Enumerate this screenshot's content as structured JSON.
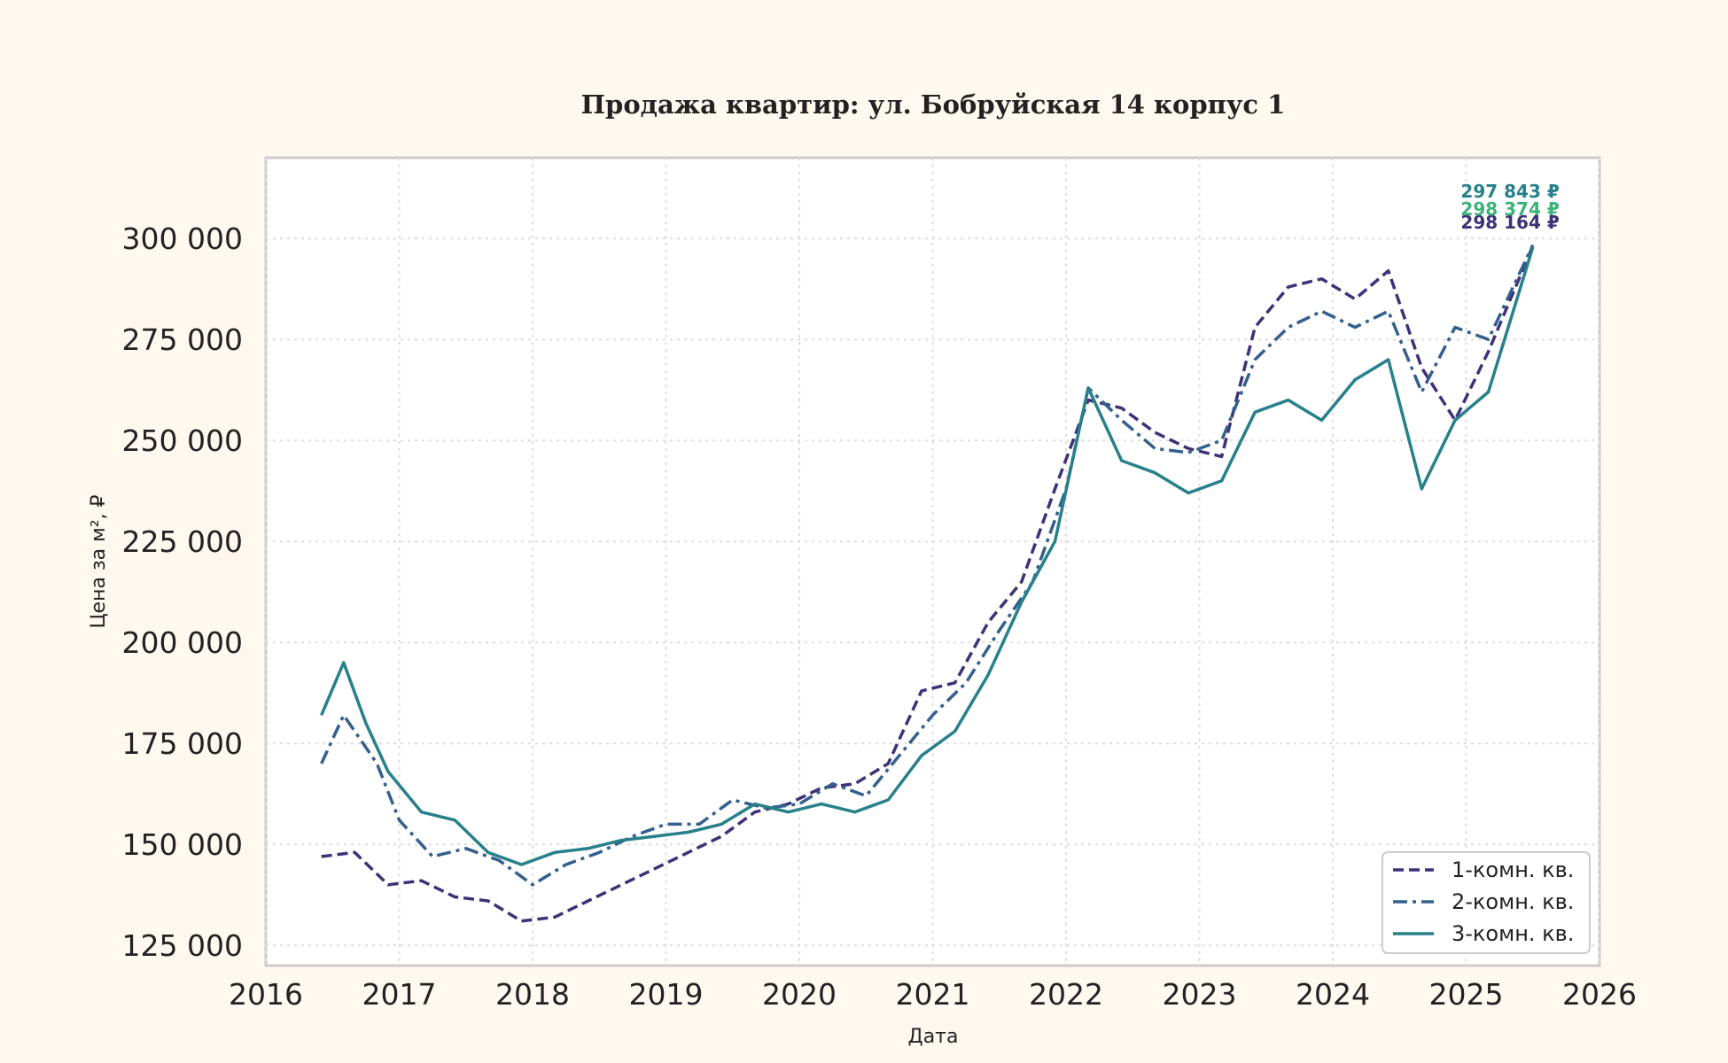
{
  "chart_data": {
    "type": "line",
    "title": "Продажа квартир: ул. Бобруйская 14 корпус 1",
    "xlabel": "Дата",
    "ylabel": "Цена за м², ₽",
    "x_ticks": [
      "2016",
      "2017",
      "2018",
      "2019",
      "2020",
      "2021",
      "2022",
      "2023",
      "2024",
      "2025",
      "2026"
    ],
    "y_ticks": [
      "125 000",
      "150 000",
      "175 000",
      "200 000",
      "225 000",
      "250 000",
      "275 000",
      "300 000"
    ],
    "xlim": [
      "2016-01-01",
      "2026-01-01"
    ],
    "ylim": [
      120000,
      320000
    ],
    "grid": true,
    "legend_position": "bottom-right",
    "series": [
      {
        "name": "1-комн. кв.",
        "color": "#3f3177",
        "dash": "dashed",
        "end_label": "298 164 ₽",
        "end_label_color": "#3f3177",
        "points": [
          [
            "2016-06",
            147000
          ],
          [
            "2016-09",
            148000
          ],
          [
            "2016-12",
            140000
          ],
          [
            "2017-03",
            141000
          ],
          [
            "2017-06",
            137000
          ],
          [
            "2017-09",
            136000
          ],
          [
            "2017-12",
            131000
          ],
          [
            "2018-03",
            132000
          ],
          [
            "2018-06",
            136000
          ],
          [
            "2018-09",
            140000
          ],
          [
            "2018-12",
            144000
          ],
          [
            "2019-03",
            148000
          ],
          [
            "2019-06",
            152000
          ],
          [
            "2019-09",
            158000
          ],
          [
            "2019-12",
            160000
          ],
          [
            "2020-03",
            164000
          ],
          [
            "2020-06",
            165000
          ],
          [
            "2020-09",
            170000
          ],
          [
            "2020-12",
            188000
          ],
          [
            "2021-03",
            190000
          ],
          [
            "2021-06",
            205000
          ],
          [
            "2021-09",
            215000
          ],
          [
            "2021-12",
            238000
          ],
          [
            "2022-03",
            260000
          ],
          [
            "2022-06",
            258000
          ],
          [
            "2022-09",
            252000
          ],
          [
            "2022-12",
            248000
          ],
          [
            "2023-03",
            246000
          ],
          [
            "2023-06",
            278000
          ],
          [
            "2023-09",
            288000
          ],
          [
            "2023-12",
            290000
          ],
          [
            "2024-03",
            285000
          ],
          [
            "2024-06",
            292000
          ],
          [
            "2024-09",
            268000
          ],
          [
            "2024-12",
            255000
          ],
          [
            "2025-03",
            272000
          ],
          [
            "2025-07",
            298164
          ]
        ]
      },
      {
        "name": "2-комн. кв.",
        "color": "#33608c",
        "dash": "dashdot",
        "end_label": "298 374 ₽",
        "end_label_color": "#3bb37a",
        "points": [
          [
            "2016-06",
            170000
          ],
          [
            "2016-08",
            182000
          ],
          [
            "2016-11",
            170000
          ],
          [
            "2017-01",
            156000
          ],
          [
            "2017-04",
            147000
          ],
          [
            "2017-07",
            149000
          ],
          [
            "2017-10",
            146000
          ],
          [
            "2018-01",
            140000
          ],
          [
            "2018-04",
            145000
          ],
          [
            "2018-07",
            148000
          ],
          [
            "2018-10",
            152000
          ],
          [
            "2019-01",
            155000
          ],
          [
            "2019-04",
            155000
          ],
          [
            "2019-07",
            161000
          ],
          [
            "2019-10",
            159000
          ],
          [
            "2020-01",
            160000
          ],
          [
            "2020-04",
            165000
          ],
          [
            "2020-07",
            162000
          ],
          [
            "2020-10",
            172000
          ],
          [
            "2021-01",
            182000
          ],
          [
            "2021-04",
            190000
          ],
          [
            "2021-07",
            203000
          ],
          [
            "2021-10",
            215000
          ],
          [
            "2022-01",
            238000
          ],
          [
            "2022-03",
            263000
          ],
          [
            "2022-06",
            255000
          ],
          [
            "2022-09",
            248000
          ],
          [
            "2022-12",
            247000
          ],
          [
            "2023-03",
            250000
          ],
          [
            "2023-06",
            270000
          ],
          [
            "2023-09",
            278000
          ],
          [
            "2023-12",
            282000
          ],
          [
            "2024-03",
            278000
          ],
          [
            "2024-06",
            282000
          ],
          [
            "2024-09",
            262000
          ],
          [
            "2024-12",
            278000
          ],
          [
            "2025-03",
            275000
          ],
          [
            "2025-07",
            298374
          ]
        ]
      },
      {
        "name": "3-комн. кв.",
        "color": "#27808a",
        "dash": "solid",
        "end_label": "297 843 ₽",
        "end_label_color": "#27808a",
        "points": [
          [
            "2016-06",
            182000
          ],
          [
            "2016-08",
            195000
          ],
          [
            "2016-10",
            180000
          ],
          [
            "2016-12",
            168000
          ],
          [
            "2017-03",
            158000
          ],
          [
            "2017-06",
            156000
          ],
          [
            "2017-09",
            148000
          ],
          [
            "2017-12",
            145000
          ],
          [
            "2018-03",
            148000
          ],
          [
            "2018-06",
            149000
          ],
          [
            "2018-09",
            151000
          ],
          [
            "2018-12",
            152000
          ],
          [
            "2019-03",
            153000
          ],
          [
            "2019-06",
            155000
          ],
          [
            "2019-09",
            160000
          ],
          [
            "2019-12",
            158000
          ],
          [
            "2020-03",
            160000
          ],
          [
            "2020-06",
            158000
          ],
          [
            "2020-09",
            161000
          ],
          [
            "2020-12",
            172000
          ],
          [
            "2021-03",
            178000
          ],
          [
            "2021-06",
            192000
          ],
          [
            "2021-09",
            210000
          ],
          [
            "2021-12",
            225000
          ],
          [
            "2022-03",
            263000
          ],
          [
            "2022-06",
            245000
          ],
          [
            "2022-09",
            242000
          ],
          [
            "2022-12",
            237000
          ],
          [
            "2023-03",
            240000
          ],
          [
            "2023-06",
            257000
          ],
          [
            "2023-09",
            260000
          ],
          [
            "2023-12",
            255000
          ],
          [
            "2024-03",
            265000
          ],
          [
            "2024-06",
            270000
          ],
          [
            "2024-09",
            238000
          ],
          [
            "2024-12",
            255000
          ],
          [
            "2025-03",
            262000
          ],
          [
            "2025-07",
            297843
          ]
        ]
      }
    ]
  }
}
